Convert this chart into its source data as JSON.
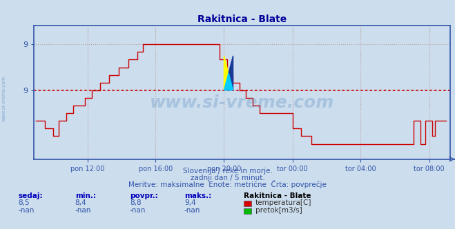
{
  "title": "Rakitnica - Blate",
  "title_color": "#000099",
  "bg_color": "#ccdded",
  "plot_bg_color": "#ccdded",
  "line_color": "#cc0000",
  "avg_line_color": "#cc0000",
  "avg_value": 8.8,
  "ylim": [
    7.9,
    9.65
  ],
  "grid_color": "#bb9999",
  "axis_color": "#3355aa",
  "xlabel_color": "#3355aa",
  "watermark": "www.si-vreme.com",
  "watermark_color": "#5588bb",
  "info_line1": "Slovenija / reke in morje.",
  "info_line2": "zadnji dan / 5 minut.",
  "info_line3": "Meritve: maksimalne  Enote: metrične  Črta: povprečje",
  "info_color": "#3355aa",
  "stat_label_color": "#0000bb",
  "sedaj": "8,5",
  "min_val": "8,4",
  "povpr": "8,8",
  "maks": "9,4",
  "station": "Rakitnica - Blate",
  "temp_label": "temperatura[C]",
  "flow_label": "pretok[m3/s]",
  "temp_color": "#dd0000",
  "flow_color": "#00bb00",
  "x_tick_labels": [
    "pon 12:00",
    "pon 16:00",
    "pon 20:00",
    "tor 00:00",
    "tor 04:00",
    "tor 08:00"
  ]
}
